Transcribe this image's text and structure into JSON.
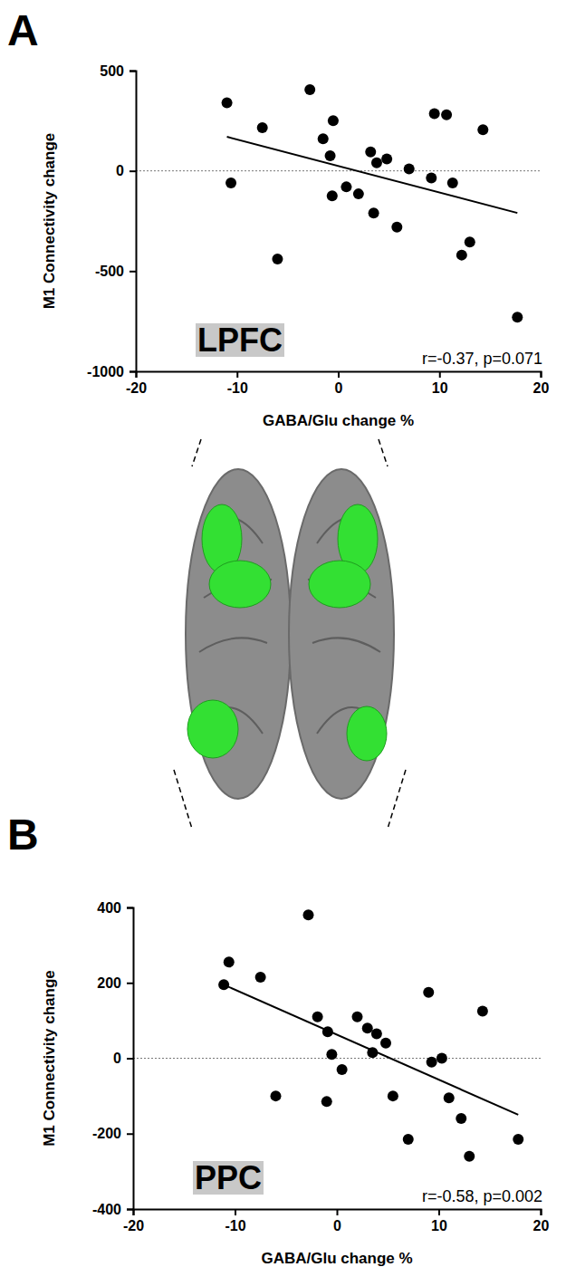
{
  "chart_data": [
    {
      "type": "scatter",
      "panel": "A",
      "label": "LPFC",
      "annotation": "r=-0.37, p=0.071",
      "x_label": "GABA/Glu change %",
      "y_label": "M1 Connectivity change",
      "color": "#000000",
      "marker": "circle",
      "x": [
        -11,
        -10.6,
        -7.5,
        -6,
        -2.8,
        -1.5,
        -0.8,
        -0.5,
        -0.6,
        0.8,
        2,
        3.2,
        3.8,
        3.5,
        4.8,
        5.8,
        7,
        9.2,
        9.5,
        10.7,
        11.3,
        12.2,
        13,
        14.3,
        17.7
      ],
      "y": [
        340,
        -60,
        215,
        -440,
        405,
        160,
        75,
        250,
        -125,
        -80,
        -115,
        95,
        40,
        -210,
        60,
        -280,
        10,
        -35,
        285,
        280,
        -60,
        -420,
        -355,
        205,
        -730
      ],
      "fit": {
        "x": [
          -11,
          17.7
        ],
        "y": [
          170,
          -210
        ]
      },
      "reference_y": 0,
      "xlim": [
        -20,
        20
      ],
      "xticks": [
        -20,
        -10,
        0,
        10,
        20
      ],
      "ylim": [
        -1000,
        500
      ],
      "yticks": [
        -1000,
        -500,
        0,
        500
      ]
    },
    {
      "type": "scatter",
      "panel": "B",
      "label": "PPC",
      "annotation": "r=-0.58, p=0.002",
      "x_label": "GABA/Glu change %",
      "y_label": "M1 Connectivity change",
      "color": "#000000",
      "marker": "circle",
      "x": [
        -11.1,
        -10.6,
        -7.5,
        -6,
        -2.8,
        -1.9,
        -1,
        -0.9,
        -0.5,
        0.5,
        2,
        3,
        3.5,
        3.9,
        4.8,
        5.5,
        7,
        9,
        9.3,
        10.3,
        11,
        12.2,
        13,
        14.3,
        17.8
      ],
      "y": [
        195,
        255,
        215,
        -100,
        380,
        110,
        -115,
        70,
        10,
        -30,
        110,
        80,
        15,
        65,
        40,
        -100,
        -215,
        175,
        -10,
        0,
        -105,
        -160,
        -260,
        125,
        -215
      ],
      "fit": {
        "x": [
          -11.1,
          17.8
        ],
        "y": [
          195,
          -150
        ]
      },
      "reference_y": 0,
      "xlim": [
        -20,
        20
      ],
      "xticks": [
        -20,
        -10,
        0,
        10,
        20
      ],
      "ylim": [
        -400,
        400
      ],
      "yticks": [
        -400,
        -200,
        0,
        200,
        400
      ]
    }
  ]
}
